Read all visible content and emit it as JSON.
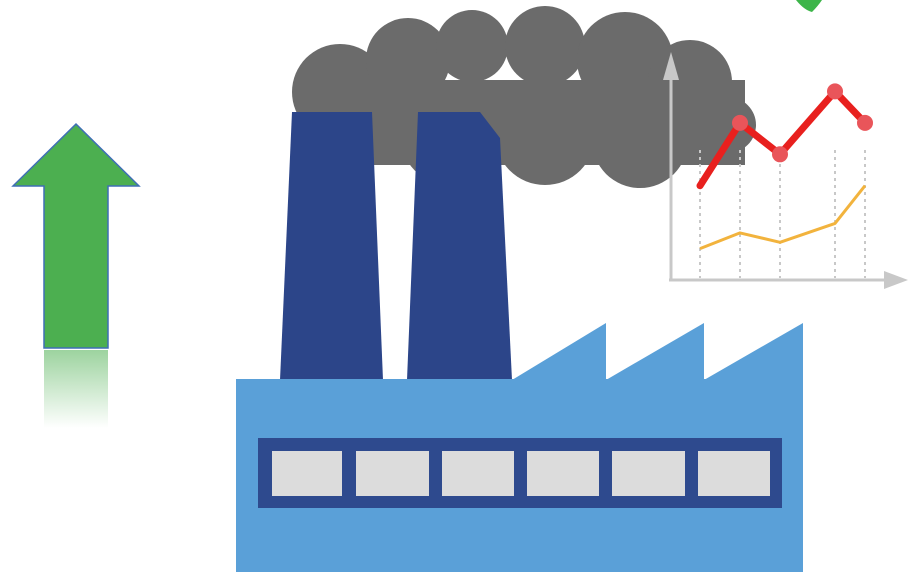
{
  "scene": {
    "icons": [
      "up-arrow-icon",
      "smoke-cloud-icon",
      "chimney-icon",
      "factory-icon",
      "line-chart-icon",
      "check-mark-icon"
    ]
  },
  "colors": {
    "background": "#ffffff",
    "arrow_green": "#4CAF50",
    "arrow_outline": "#3F6FB5",
    "smoke_gray": "#6B6B6B",
    "chimney_navy": "#2C4589",
    "factory_blue": "#5AA0D8",
    "window_band_navy": "#2E4A8E",
    "window_gray": "#DCDCDC",
    "chart_red_line": "#E8201E",
    "chart_red_point": "#E9555A",
    "chart_yellow_line": "#F2B33D",
    "chart_axis_gray": "#C8C8C8",
    "check_green": "#3DB54A"
  },
  "chart_data": {
    "type": "line",
    "series": [
      {
        "values": [
          3,
          5,
          4,
          6,
          5
        ]
      },
      {
        "values": [
          1,
          1.5,
          1.2,
          1.8,
          3
        ]
      }
    ]
  }
}
